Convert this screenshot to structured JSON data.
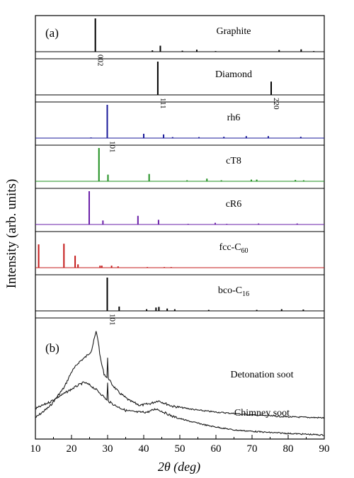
{
  "chart_data": {
    "type": "line",
    "xlabel": "2θ (deg)",
    "ylabel": "Intensity (arb. units)",
    "xlim": [
      10,
      90
    ],
    "xticks": [
      10,
      20,
      30,
      40,
      50,
      60,
      70,
      80,
      90
    ],
    "panel_labels": [
      "(a)",
      "(b)"
    ],
    "panels": [
      {
        "name": "Graphite",
        "subscript": "",
        "color": "#000000",
        "peaks": [
          [
            26.6,
            1.0
          ],
          [
            42.4,
            0.04
          ],
          [
            44.6,
            0.18
          ],
          [
            50.7,
            0.03
          ],
          [
            54.7,
            0.06
          ],
          [
            59.9,
            0.02
          ],
          [
            77.5,
            0.05
          ],
          [
            83.6,
            0.07
          ],
          [
            87.1,
            0.02
          ]
        ],
        "annotations": [
          {
            "x": 26.6,
            "text": "002"
          }
        ]
      },
      {
        "name": "Diamond",
        "subscript": "",
        "color": "#000000",
        "peaks": [
          [
            43.9,
            1.0
          ],
          [
            75.3,
            0.4
          ]
        ],
        "annotations": [
          {
            "x": 43.9,
            "text": "111"
          },
          {
            "x": 75.3,
            "text": "220"
          }
        ]
      },
      {
        "name": "rh6",
        "subscript": "",
        "color": "#1a1a9a",
        "peaks": [
          [
            25.4,
            0.02
          ],
          [
            29.9,
            1.0
          ],
          [
            40.0,
            0.13
          ],
          [
            45.5,
            0.11
          ],
          [
            48.0,
            0.03
          ],
          [
            55.3,
            0.03
          ],
          [
            62.2,
            0.04
          ],
          [
            68.4,
            0.06
          ],
          [
            74.5,
            0.06
          ],
          [
            83.5,
            0.04
          ]
        ],
        "annotations": [
          {
            "x": 29.9,
            "text": "101"
          }
        ]
      },
      {
        "name": "cT8",
        "subscript": "",
        "color": "#1f8f1f",
        "peaks": [
          [
            27.6,
            1.0
          ],
          [
            30.1,
            0.2
          ],
          [
            41.5,
            0.22
          ],
          [
            52.0,
            0.03
          ],
          [
            57.5,
            0.08
          ],
          [
            61.5,
            0.03
          ],
          [
            69.8,
            0.05
          ],
          [
            71.3,
            0.05
          ],
          [
            82.0,
            0.04
          ],
          [
            84.3,
            0.03
          ]
        ],
        "annotations": []
      },
      {
        "name": "cR6",
        "subscript": "",
        "color": "#6a1fa8",
        "peaks": [
          [
            24.9,
            1.0
          ],
          [
            28.7,
            0.12
          ],
          [
            38.4,
            0.26
          ],
          [
            44.1,
            0.14
          ],
          [
            52.3,
            0.02
          ],
          [
            59.8,
            0.05
          ],
          [
            63.0,
            0.02
          ],
          [
            71.8,
            0.03
          ],
          [
            82.5,
            0.03
          ]
        ],
        "annotations": []
      },
      {
        "name": "fcc-C",
        "subscript": "60",
        "color": "#c41a1a",
        "peaks": [
          [
            10.9,
            0.7
          ],
          [
            17.9,
            0.72
          ],
          [
            21.0,
            0.36
          ],
          [
            21.8,
            0.1
          ],
          [
            27.9,
            0.06
          ],
          [
            28.4,
            0.06
          ],
          [
            31.1,
            0.06
          ],
          [
            32.9,
            0.04
          ],
          [
            41.0,
            0.02
          ],
          [
            45.7,
            0.02
          ],
          [
            47.6,
            0.02
          ]
        ],
        "annotations": []
      },
      {
        "name": "bco-C",
        "subscript": "16",
        "color": "#000000",
        "peaks": [
          [
            29.9,
            1.0
          ],
          [
            33.2,
            0.13
          ],
          [
            40.8,
            0.05
          ],
          [
            43.4,
            0.1
          ],
          [
            44.2,
            0.12
          ],
          [
            46.5,
            0.07
          ],
          [
            48.6,
            0.05
          ],
          [
            58.0,
            0.03
          ],
          [
            71.3,
            0.03
          ],
          [
            78.2,
            0.05
          ],
          [
            84.2,
            0.04
          ]
        ],
        "annotations": [
          {
            "x": 29.9,
            "text": "101"
          }
        ]
      }
    ],
    "soot_series": [
      {
        "name": "Detonation soot",
        "points": [
          [
            10,
            0.0
          ],
          [
            14,
            0.12
          ],
          [
            18,
            0.32
          ],
          [
            20,
            0.48
          ],
          [
            22,
            0.58
          ],
          [
            24,
            0.64
          ],
          [
            25.5,
            0.7
          ],
          [
            26.8,
            0.9
          ],
          [
            27.3,
            0.83
          ],
          [
            28,
            0.62
          ],
          [
            29,
            0.46
          ],
          [
            29.8,
            0.42
          ],
          [
            30.0,
            0.62
          ],
          [
            30.2,
            0.42
          ],
          [
            31,
            0.36
          ],
          [
            33,
            0.27
          ],
          [
            36,
            0.18
          ],
          [
            39,
            0.13
          ],
          [
            42,
            0.15
          ],
          [
            44,
            0.18
          ],
          [
            46,
            0.15
          ],
          [
            48,
            0.12
          ],
          [
            50,
            0.11
          ],
          [
            55,
            0.08
          ],
          [
            60,
            0.06
          ],
          [
            70,
            0.03
          ],
          [
            80,
            0.01
          ],
          [
            90,
            0.0
          ]
        ]
      },
      {
        "name": "Chimney soot",
        "points": [
          [
            10,
            0.34
          ],
          [
            14,
            0.42
          ],
          [
            18,
            0.52
          ],
          [
            20,
            0.57
          ],
          [
            22,
            0.62
          ],
          [
            23.5,
            0.65
          ],
          [
            25,
            0.62
          ],
          [
            27,
            0.56
          ],
          [
            29,
            0.48
          ],
          [
            29.8,
            0.44
          ],
          [
            30.0,
            0.64
          ],
          [
            30.2,
            0.43
          ],
          [
            32,
            0.38
          ],
          [
            35,
            0.32
          ],
          [
            38,
            0.3
          ],
          [
            41,
            0.3
          ],
          [
            43.5,
            0.34
          ],
          [
            45,
            0.31
          ],
          [
            48,
            0.25
          ],
          [
            52,
            0.2
          ],
          [
            58,
            0.14
          ],
          [
            65,
            0.09
          ],
          [
            75,
            0.06
          ],
          [
            85,
            0.04
          ],
          [
            90,
            0.03
          ]
        ]
      }
    ]
  }
}
